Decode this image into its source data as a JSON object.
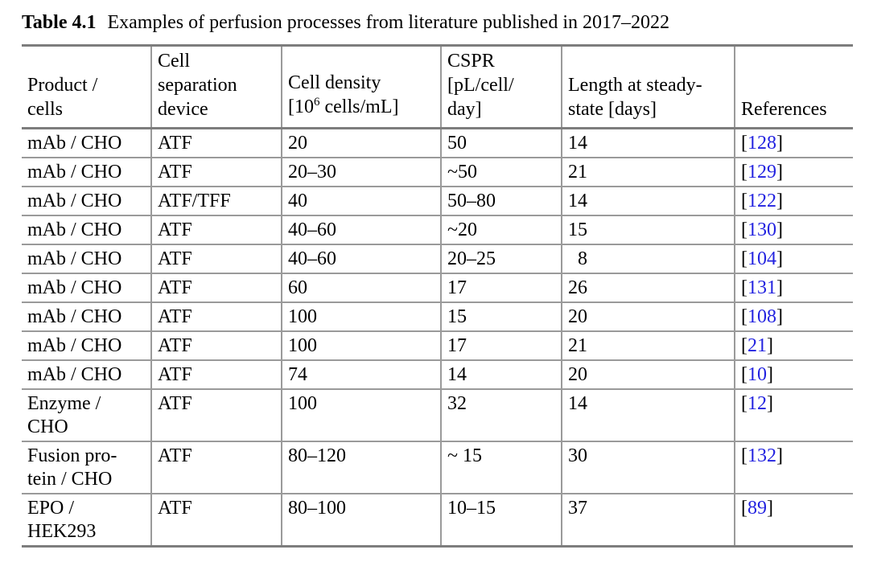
{
  "title": {
    "label": "Table 4.1",
    "caption": "Examples of perfusion processes from literature published in 2017–2022"
  },
  "colors": {
    "reference_link": "#2222e0",
    "rule_thick": "#7d7d7d",
    "rule_thin": "#9a9a9a"
  },
  "table": {
    "header": {
      "product": [
        "Product /",
        "cells"
      ],
      "device": [
        "Cell",
        "separation",
        "device"
      ],
      "density": {
        "line1": "Cell density",
        "line2_pre": "[10",
        "sup": "6",
        "line2_post": " cells/mL]"
      },
      "cspr": [
        "CSPR",
        "[pL/cell/",
        "day]"
      ],
      "length": [
        "Length at steady-",
        "state [days]"
      ],
      "references": "References"
    },
    "ref_bracket_open": "[",
    "ref_bracket_close": "]",
    "rows": [
      {
        "product": "mAb / CHO",
        "device": "ATF",
        "density": "20",
        "cspr": "50",
        "length": "14",
        "ref": "128"
      },
      {
        "product": "mAb / CHO",
        "device": "ATF",
        "density": "20–30",
        "cspr": "~50",
        "length": "21",
        "ref": "129"
      },
      {
        "product": "mAb / CHO",
        "device": "ATF/TFF",
        "density": "40",
        "cspr": "50–80",
        "length": "14",
        "ref": "122"
      },
      {
        "product": "mAb / CHO",
        "device": "ATF",
        "density": "40–60",
        "cspr": "~20",
        "length": "15",
        "ref": "130"
      },
      {
        "product": "mAb / CHO",
        "device": "ATF",
        "density": "40–60",
        "cspr": "20–25",
        "length": " 8",
        "ref": "104"
      },
      {
        "product": "mAb / CHO",
        "device": "ATF",
        "density": "60",
        "cspr": "17",
        "length": "26",
        "ref": "131"
      },
      {
        "product": "mAb / CHO",
        "device": "ATF",
        "density": "100",
        "cspr": "15",
        "length": "20",
        "ref": "108"
      },
      {
        "product": "mAb / CHO",
        "device": "ATF",
        "density": "100",
        "cspr": "17",
        "length": "21",
        "ref": "21"
      },
      {
        "product": "mAb / CHO",
        "device": "ATF",
        "density": "74",
        "cspr": "14",
        "length": "20",
        "ref": "10"
      },
      {
        "product": "Enzyme /\nCHO",
        "device": "ATF",
        "density": "100",
        "cspr": "32",
        "length": "14",
        "ref": "12"
      },
      {
        "product": "Fusion pro-\ntein / CHO",
        "device": "ATF",
        "density": "80–120",
        "cspr": "~ 15",
        "length": "30",
        "ref": "132"
      },
      {
        "product": "EPO /\nHEK293",
        "device": "ATF",
        "density": "80–100",
        "cspr": "10–15",
        "length": "37",
        "ref": "89"
      }
    ]
  }
}
